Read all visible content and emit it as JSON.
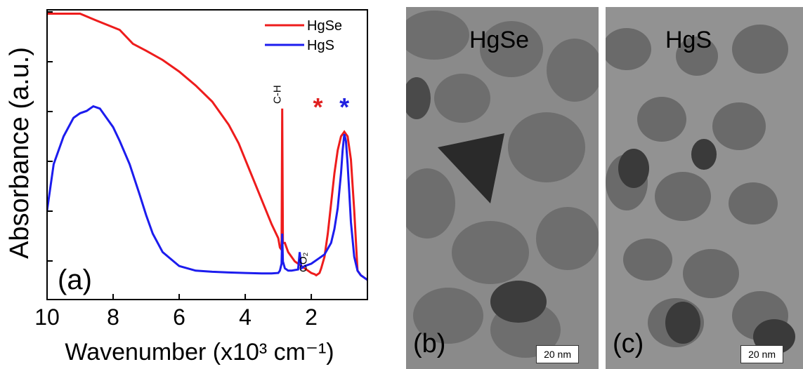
{
  "chart_data": {
    "type": "line",
    "xlabel": "Wavenumber (x10³ cm⁻¹)",
    "ylabel": "Absorbance (a.u.)",
    "xlim": [
      10,
      0.3
    ],
    "x_ticks": [
      10,
      8,
      6,
      4,
      2
    ],
    "x_tick_labels": [
      "10",
      "8",
      "6",
      "4",
      "2"
    ],
    "y_ticks_count": 6,
    "grid": false,
    "legend_position": "top-right",
    "panel_label": "(a)",
    "annotations": [
      {
        "text": "C-H",
        "x": 2.88
      },
      {
        "text": "CO₂",
        "x": 2.35
      },
      {
        "text": "*",
        "x": 1.8,
        "color": "#e02020"
      },
      {
        "text": "*",
        "x": 1.0,
        "color": "#2020e0"
      }
    ],
    "series": [
      {
        "name": "HgSe",
        "color": "#ee1c1c",
        "x": [
          10,
          9.5,
          9.0,
          8.5,
          7.8,
          7.4,
          7.0,
          6.5,
          6.0,
          5.5,
          5.0,
          4.5,
          4.2,
          4.0,
          3.8,
          3.6,
          3.4,
          3.2,
          3.0,
          2.95,
          2.9,
          2.88,
          2.86,
          2.8,
          2.75,
          2.7,
          2.6,
          2.5,
          2.4,
          2.3,
          2.2,
          2.1,
          2.0,
          1.9,
          1.85,
          1.8,
          1.75,
          1.7,
          1.6,
          1.5,
          1.4,
          1.3,
          1.2,
          1.1,
          1.0,
          0.9,
          0.8,
          0.7,
          0.6,
          0.5,
          0.4,
          0.3
        ],
        "y": [
          1.15,
          1.15,
          1.15,
          1.12,
          1.08,
          1.02,
          0.99,
          0.95,
          0.9,
          0.84,
          0.77,
          0.67,
          0.59,
          0.52,
          0.45,
          0.38,
          0.31,
          0.24,
          0.18,
          0.14,
          0.13,
          0.74,
          0.16,
          0.16,
          0.14,
          0.12,
          0.1,
          0.08,
          0.07,
          0.06,
          0.05,
          0.04,
          0.03,
          0.025,
          0.02,
          0.025,
          0.03,
          0.05,
          0.1,
          0.2,
          0.33,
          0.46,
          0.56,
          0.62,
          0.64,
          0.62,
          0.52,
          0.3,
          0.04,
          0.02,
          0.01,
          0.0
        ]
      },
      {
        "name": "HgS",
        "color": "#1c1cee",
        "x": [
          10,
          9.8,
          9.5,
          9.2,
          9.0,
          8.8,
          8.6,
          8.4,
          8.2,
          8.0,
          7.8,
          7.5,
          7.2,
          7.0,
          6.8,
          6.5,
          6.0,
          5.5,
          5.0,
          4.5,
          4.0,
          3.5,
          3.2,
          3.0,
          2.95,
          2.9,
          2.88,
          2.86,
          2.8,
          2.7,
          2.6,
          2.4,
          2.35,
          2.3,
          2.2,
          2.0,
          1.8,
          1.6,
          1.4,
          1.3,
          1.2,
          1.1,
          1.05,
          1.0,
          0.95,
          0.9,
          0.85,
          0.8,
          0.7,
          0.6,
          0.5,
          0.4,
          0.3
        ],
        "y": [
          0.3,
          0.5,
          0.62,
          0.7,
          0.72,
          0.73,
          0.75,
          0.74,
          0.7,
          0.66,
          0.6,
          0.5,
          0.37,
          0.28,
          0.2,
          0.12,
          0.06,
          0.04,
          0.035,
          0.032,
          0.03,
          0.028,
          0.028,
          0.03,
          0.04,
          0.07,
          0.2,
          0.08,
          0.05,
          0.04,
          0.04,
          0.045,
          0.12,
          0.05,
          0.06,
          0.07,
          0.09,
          0.11,
          0.16,
          0.22,
          0.31,
          0.46,
          0.56,
          0.63,
          0.6,
          0.5,
          0.38,
          0.25,
          0.1,
          0.04,
          0.02,
          0.01,
          0.0
        ]
      }
    ]
  },
  "panel_b": {
    "title": "HgSe",
    "label": "(b)",
    "scale_bar": "20 nm"
  },
  "panel_c": {
    "title": "HgS",
    "label": "(c)",
    "scale_bar": "20 nm"
  }
}
